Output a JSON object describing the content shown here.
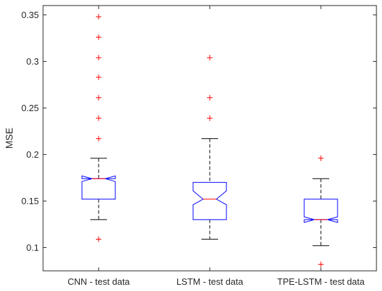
{
  "chart_data": {
    "type": "box",
    "title": "",
    "xlabel": "",
    "ylabel": "MSE",
    "ylim": [
      0.075,
      0.36
    ],
    "yticks": [
      0.1,
      0.15,
      0.2,
      0.25,
      0.3,
      0.35
    ],
    "ytick_labels": [
      "0.1",
      "0.15",
      "0.2",
      "0.25",
      "0.3",
      "0.35"
    ],
    "categories": [
      "CNN - test data",
      "LSTM - test data",
      "TPE-LSTM - test data"
    ],
    "notched": true,
    "grid": false,
    "legend": "none",
    "boxes": [
      {
        "category": "CNN - test data",
        "q1": 0.152,
        "median": 0.174,
        "q3": 0.174,
        "notch_low": 0.171,
        "notch_high": 0.177,
        "whisker_low": 0.13,
        "whisker_high": 0.196,
        "outliers": [
          0.109,
          0.217,
          0.239,
          0.261,
          0.283,
          0.304,
          0.326,
          0.348
        ]
      },
      {
        "category": "LSTM - test data",
        "q1": 0.13,
        "median": 0.152,
        "q3": 0.17,
        "notch_low": 0.146,
        "notch_high": 0.161,
        "whisker_low": 0.109,
        "whisker_high": 0.217,
        "outliers": [
          0.239,
          0.261,
          0.304
        ]
      },
      {
        "category": "TPE-LSTM - test data",
        "q1": 0.13,
        "median": 0.13,
        "q3": 0.152,
        "notch_low": 0.127,
        "notch_high": 0.133,
        "whisker_low": 0.102,
        "whisker_high": 0.174,
        "outliers": [
          0.082,
          0.196
        ]
      }
    ],
    "colors": {
      "box": "#0000ff",
      "median": "#ff0000",
      "whisker": "#000000",
      "outlier": "#ff0000",
      "axis": "#262626"
    }
  }
}
